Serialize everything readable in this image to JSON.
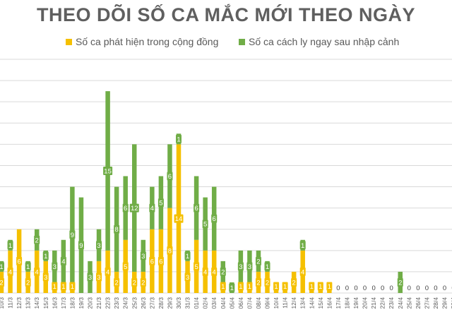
{
  "chart_data": {
    "type": "bar",
    "stacked": true,
    "title": "THEO DÕI SỐ CA MẮC MỚI THEO NGÀY",
    "grid": true,
    "legend_position": "top",
    "colors": {
      "community": "#f5c000",
      "quarantine": "#70ad47",
      "grid": "#d9d9d9",
      "axis_text": "#595959",
      "label_text": "#ffffff",
      "zero_label": "#404040"
    },
    "categories": [
      "10/3",
      "11/3",
      "12/3",
      "13/3",
      "14/3",
      "15/3",
      "16/3",
      "17/3",
      "18/3",
      "19/3",
      "20/3",
      "21/3",
      "22/3",
      "23/3",
      "24/3",
      "25/3",
      "26/3",
      "27/3",
      "28/3",
      "29/3",
      "30/3",
      "31/3",
      "01/4",
      "02/4",
      "03/4",
      "04/4",
      "05/4",
      "06/4",
      "07/4",
      "08/4",
      "09/4",
      "10/4",
      "11/4",
      "12/4",
      "13/4",
      "14/4",
      "15/4",
      "16/4",
      "17/4",
      "18/4",
      "19/4",
      "20/4",
      "21/4",
      "22/4",
      "23/4",
      "24/4",
      "25/4",
      "26/4",
      "27/4",
      "28/4",
      "29/4",
      "30/4"
    ],
    "series": [
      {
        "name": "Số ca phát hiện trong cộng đồng",
        "key": "community",
        "values": [
          2,
          4,
          6,
          2,
          4,
          3,
          1,
          1,
          1,
          0,
          0,
          3,
          4,
          2,
          5,
          2,
          2,
          6,
          6,
          8,
          14,
          3,
          5,
          4,
          4,
          1,
          0,
          1,
          1,
          2,
          2,
          1,
          1,
          2,
          4,
          1,
          1,
          1,
          0,
          0,
          0,
          0,
          0,
          0,
          0,
          0,
          0,
          0,
          0,
          0,
          0,
          0
        ]
      },
      {
        "name": "Số ca cách ly ngay sau nhập cảnh",
        "key": "quarantine",
        "values": [
          1,
          1,
          0,
          1,
          2,
          1,
          3,
          4,
          9,
          9,
          3,
          3,
          15,
          8,
          6,
          12,
          3,
          4,
          5,
          6,
          1,
          1,
          6,
          5,
          6,
          2,
          1,
          3,
          3,
          2,
          1,
          0,
          0,
          0,
          1,
          0,
          0,
          0,
          0,
          0,
          0,
          0,
          0,
          0,
          0,
          2,
          0,
          0,
          0,
          0,
          0,
          0
        ]
      }
    ],
    "zero_labels_from": "17/4",
    "ylim": [
      0,
      22
    ]
  }
}
